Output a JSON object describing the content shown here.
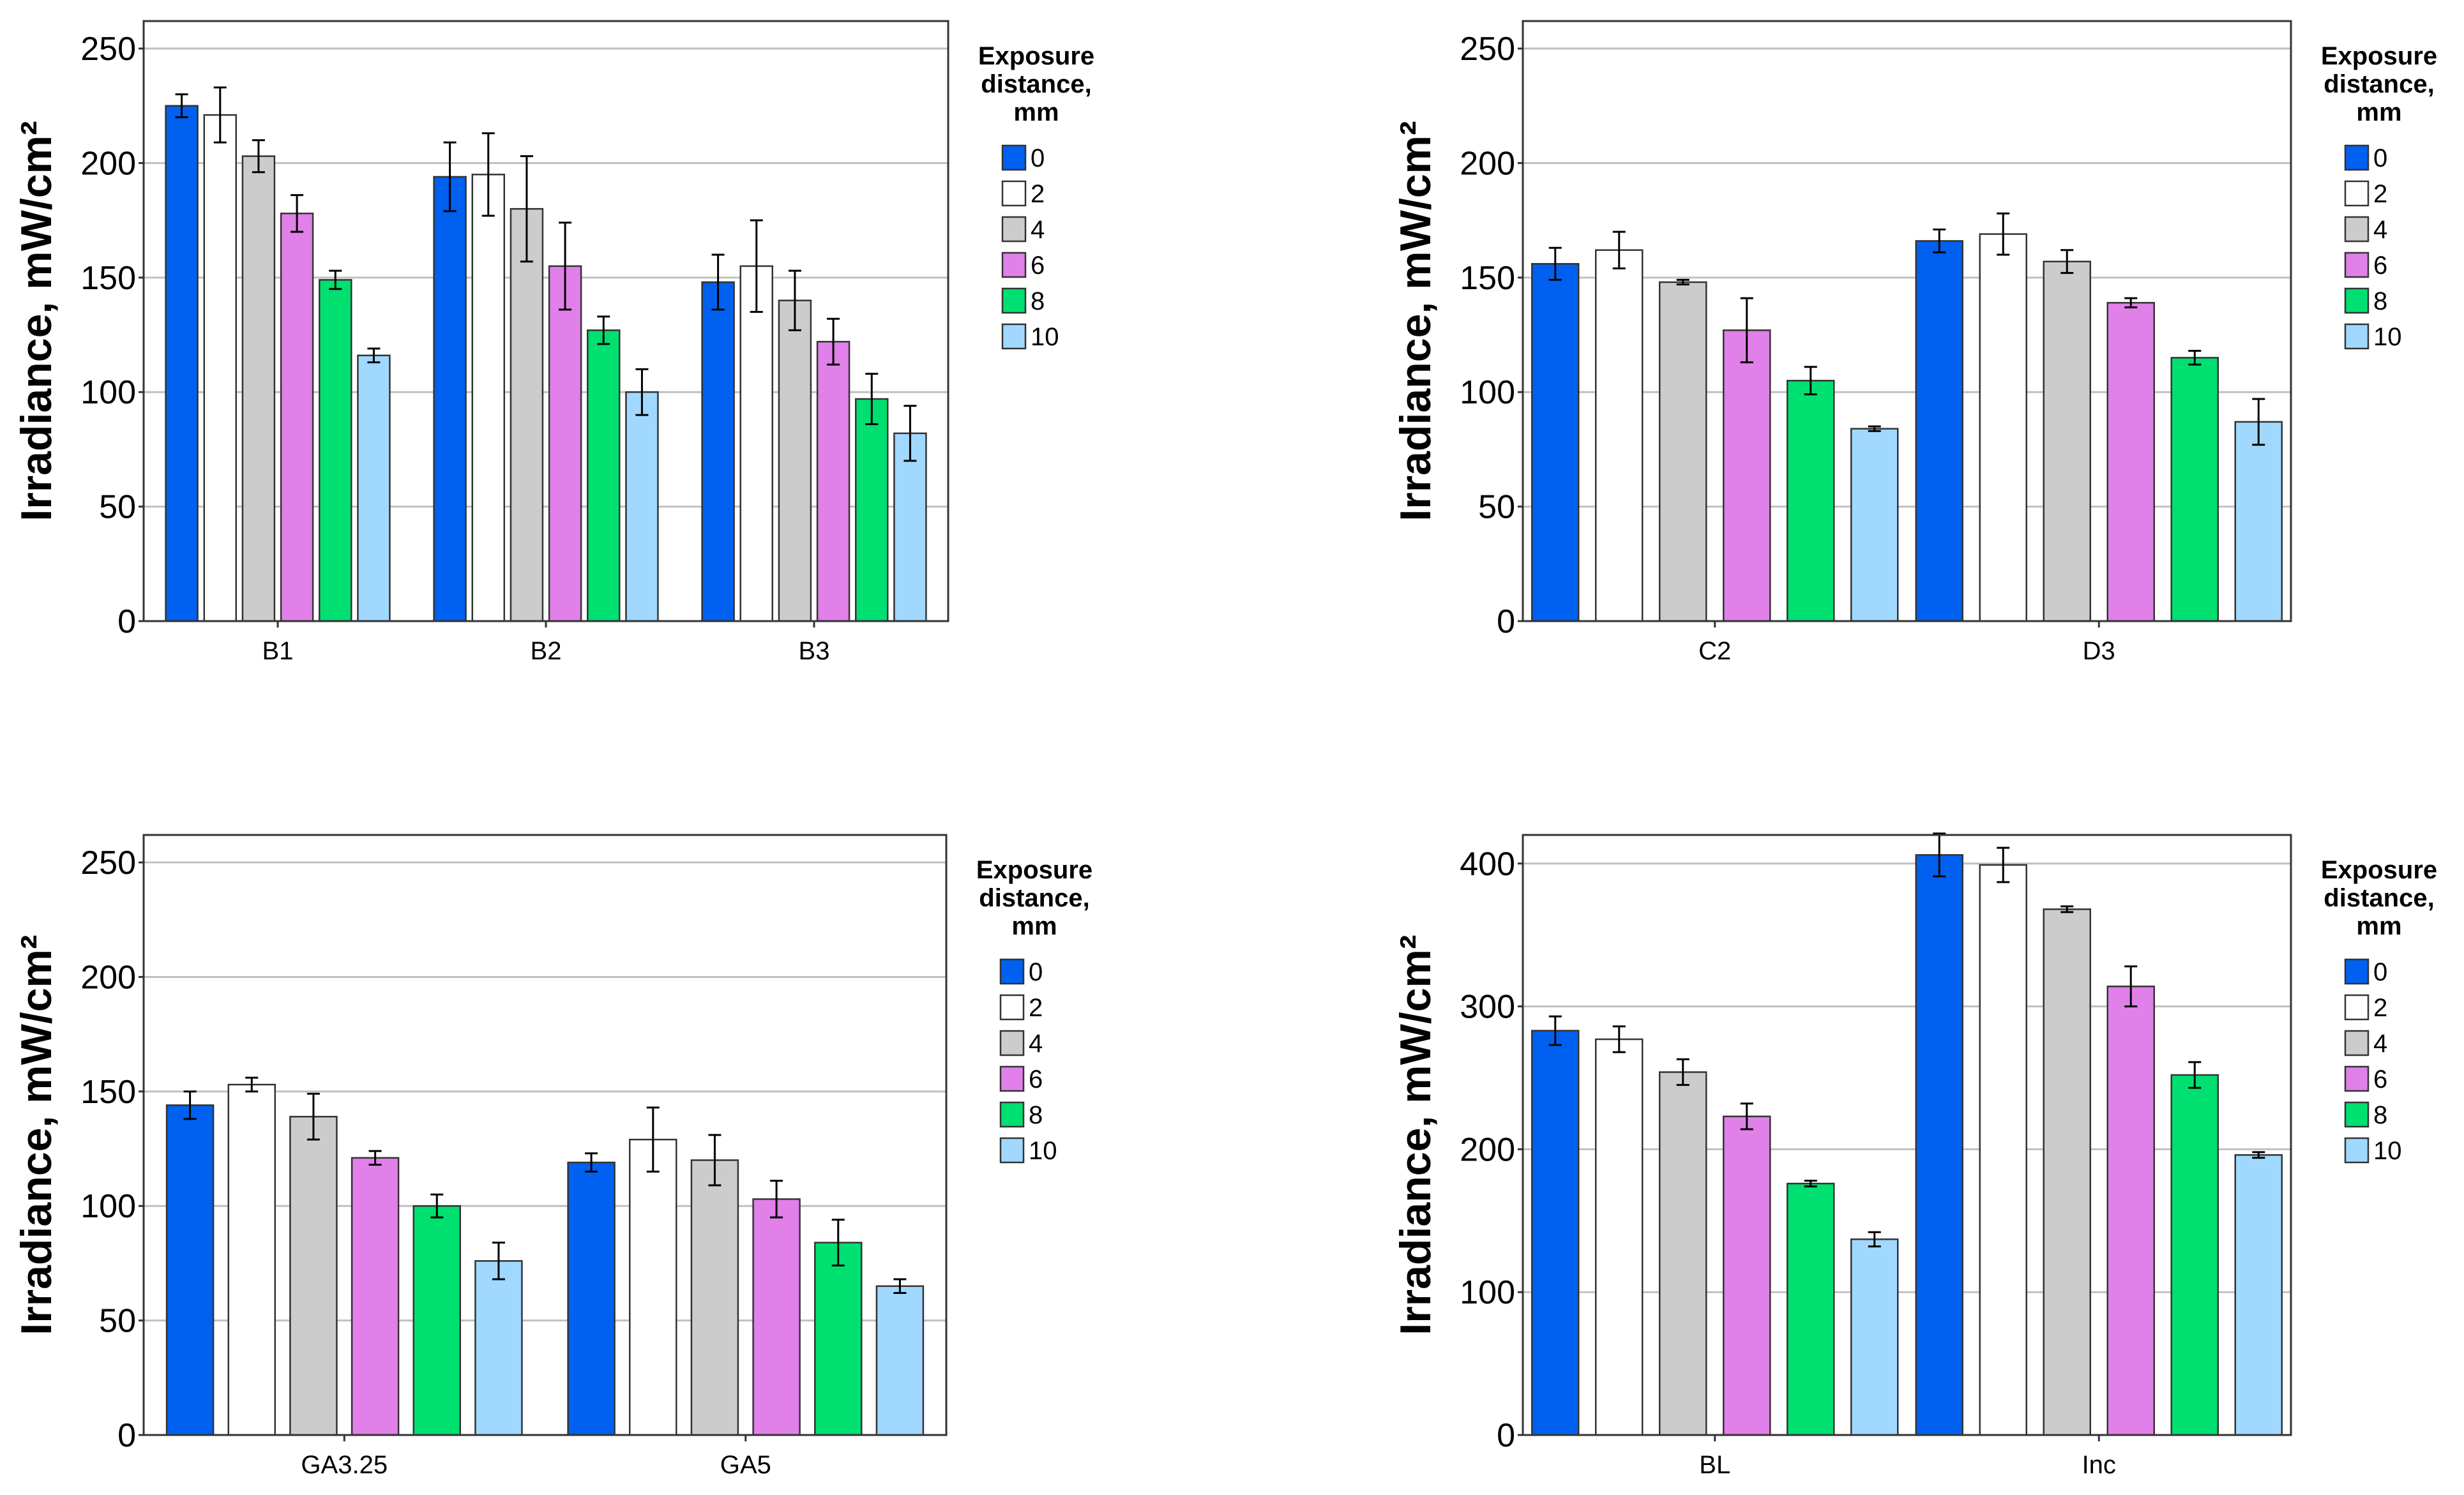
{
  "chart_data": [
    {
      "type": "bar",
      "ylabel": "Irradiance, mW/cm²",
      "ylim": [
        0,
        262
      ],
      "yticks": [
        0,
        50,
        100,
        150,
        200,
        250
      ],
      "grid": true,
      "legend": {
        "title": [
          "Exposure",
          "distance,",
          "mm"
        ],
        "placement": "right"
      },
      "categories": [
        "B1",
        "B2",
        "B3"
      ],
      "series": [
        {
          "name": "0",
          "values": [
            225,
            194,
            148
          ],
          "errors": [
            5,
            15,
            12
          ]
        },
        {
          "name": "2",
          "values": [
            221,
            195,
            155
          ],
          "errors": [
            12,
            18,
            20
          ]
        },
        {
          "name": "4",
          "values": [
            203,
            180,
            140
          ],
          "errors": [
            7,
            23,
            13
          ]
        },
        {
          "name": "6",
          "values": [
            178,
            155,
            122
          ],
          "errors": [
            8,
            19,
            10
          ]
        },
        {
          "name": "8",
          "values": [
            149,
            127,
            97
          ],
          "errors": [
            4,
            6,
            11
          ]
        },
        {
          "name": "10",
          "values": [
            116,
            100,
            82
          ],
          "errors": [
            3,
            10,
            12
          ]
        }
      ]
    },
    {
      "type": "bar",
      "ylabel": "Irradiance, mW/cm²",
      "ylim": [
        0,
        262
      ],
      "yticks": [
        0,
        50,
        100,
        150,
        200,
        250
      ],
      "grid": true,
      "legend": {
        "title": [
          "Exposure",
          "distance,",
          "mm"
        ],
        "placement": "right"
      },
      "categories": [
        "C2",
        "D3"
      ],
      "series": [
        {
          "name": "0",
          "values": [
            156,
            166
          ],
          "errors": [
            7,
            5
          ]
        },
        {
          "name": "2",
          "values": [
            162,
            169
          ],
          "errors": [
            8,
            9
          ]
        },
        {
          "name": "4",
          "values": [
            148,
            157
          ],
          "errors": [
            1,
            5
          ]
        },
        {
          "name": "6",
          "values": [
            127,
            139
          ],
          "errors": [
            14,
            2
          ]
        },
        {
          "name": "8",
          "values": [
            105,
            115
          ],
          "errors": [
            6,
            3
          ]
        },
        {
          "name": "10",
          "values": [
            84,
            87
          ],
          "errors": [
            1,
            10
          ]
        }
      ]
    },
    {
      "type": "bar",
      "ylabel": "Irradiance, mW/cm²",
      "ylim": [
        0,
        262
      ],
      "yticks": [
        0,
        50,
        100,
        150,
        200,
        250
      ],
      "grid": true,
      "legend": {
        "title": [
          "Exposure",
          "distance,",
          "mm"
        ],
        "placement": "right"
      },
      "categories": [
        "GA3.25",
        "GA5"
      ],
      "series": [
        {
          "name": "0",
          "values": [
            144,
            119
          ],
          "errors": [
            6,
            4
          ]
        },
        {
          "name": "2",
          "values": [
            153,
            129
          ],
          "errors": [
            3,
            14
          ]
        },
        {
          "name": "4",
          "values": [
            139,
            120
          ],
          "errors": [
            10,
            11
          ]
        },
        {
          "name": "6",
          "values": [
            121,
            103
          ],
          "errors": [
            3,
            8
          ]
        },
        {
          "name": "8",
          "values": [
            100,
            84
          ],
          "errors": [
            5,
            10
          ]
        },
        {
          "name": "10",
          "values": [
            76,
            65
          ],
          "errors": [
            8,
            3
          ]
        }
      ]
    },
    {
      "type": "bar",
      "ylabel": "Irradiance, mW/cm²",
      "ylim": [
        0,
        420
      ],
      "yticks": [
        0,
        100,
        200,
        300,
        400
      ],
      "grid": true,
      "legend": {
        "title": [
          "Exposure",
          "distance,",
          "mm"
        ],
        "placement": "right"
      },
      "categories": [
        "BL",
        "Inc"
      ],
      "series": [
        {
          "name": "0",
          "values": [
            283,
            406
          ],
          "errors": [
            10,
            15
          ]
        },
        {
          "name": "2",
          "values": [
            277,
            399
          ],
          "errors": [
            9,
            12
          ]
        },
        {
          "name": "4",
          "values": [
            254,
            368
          ],
          "errors": [
            9,
            2
          ]
        },
        {
          "name": "6",
          "values": [
            223,
            314
          ],
          "errors": [
            9,
            14
          ]
        },
        {
          "name": "8",
          "values": [
            176,
            252
          ],
          "errors": [
            2,
            9
          ]
        },
        {
          "name": "10",
          "values": [
            137,
            196
          ],
          "errors": [
            5,
            2
          ]
        }
      ]
    }
  ],
  "colors": {
    "series": [
      "#0060f0",
      "#ffffff",
      "#cccccc",
      "#e080e8",
      "#00e070",
      "#a0d8ff"
    ],
    "grid": "#c0c0c0",
    "axis": "#333333"
  }
}
